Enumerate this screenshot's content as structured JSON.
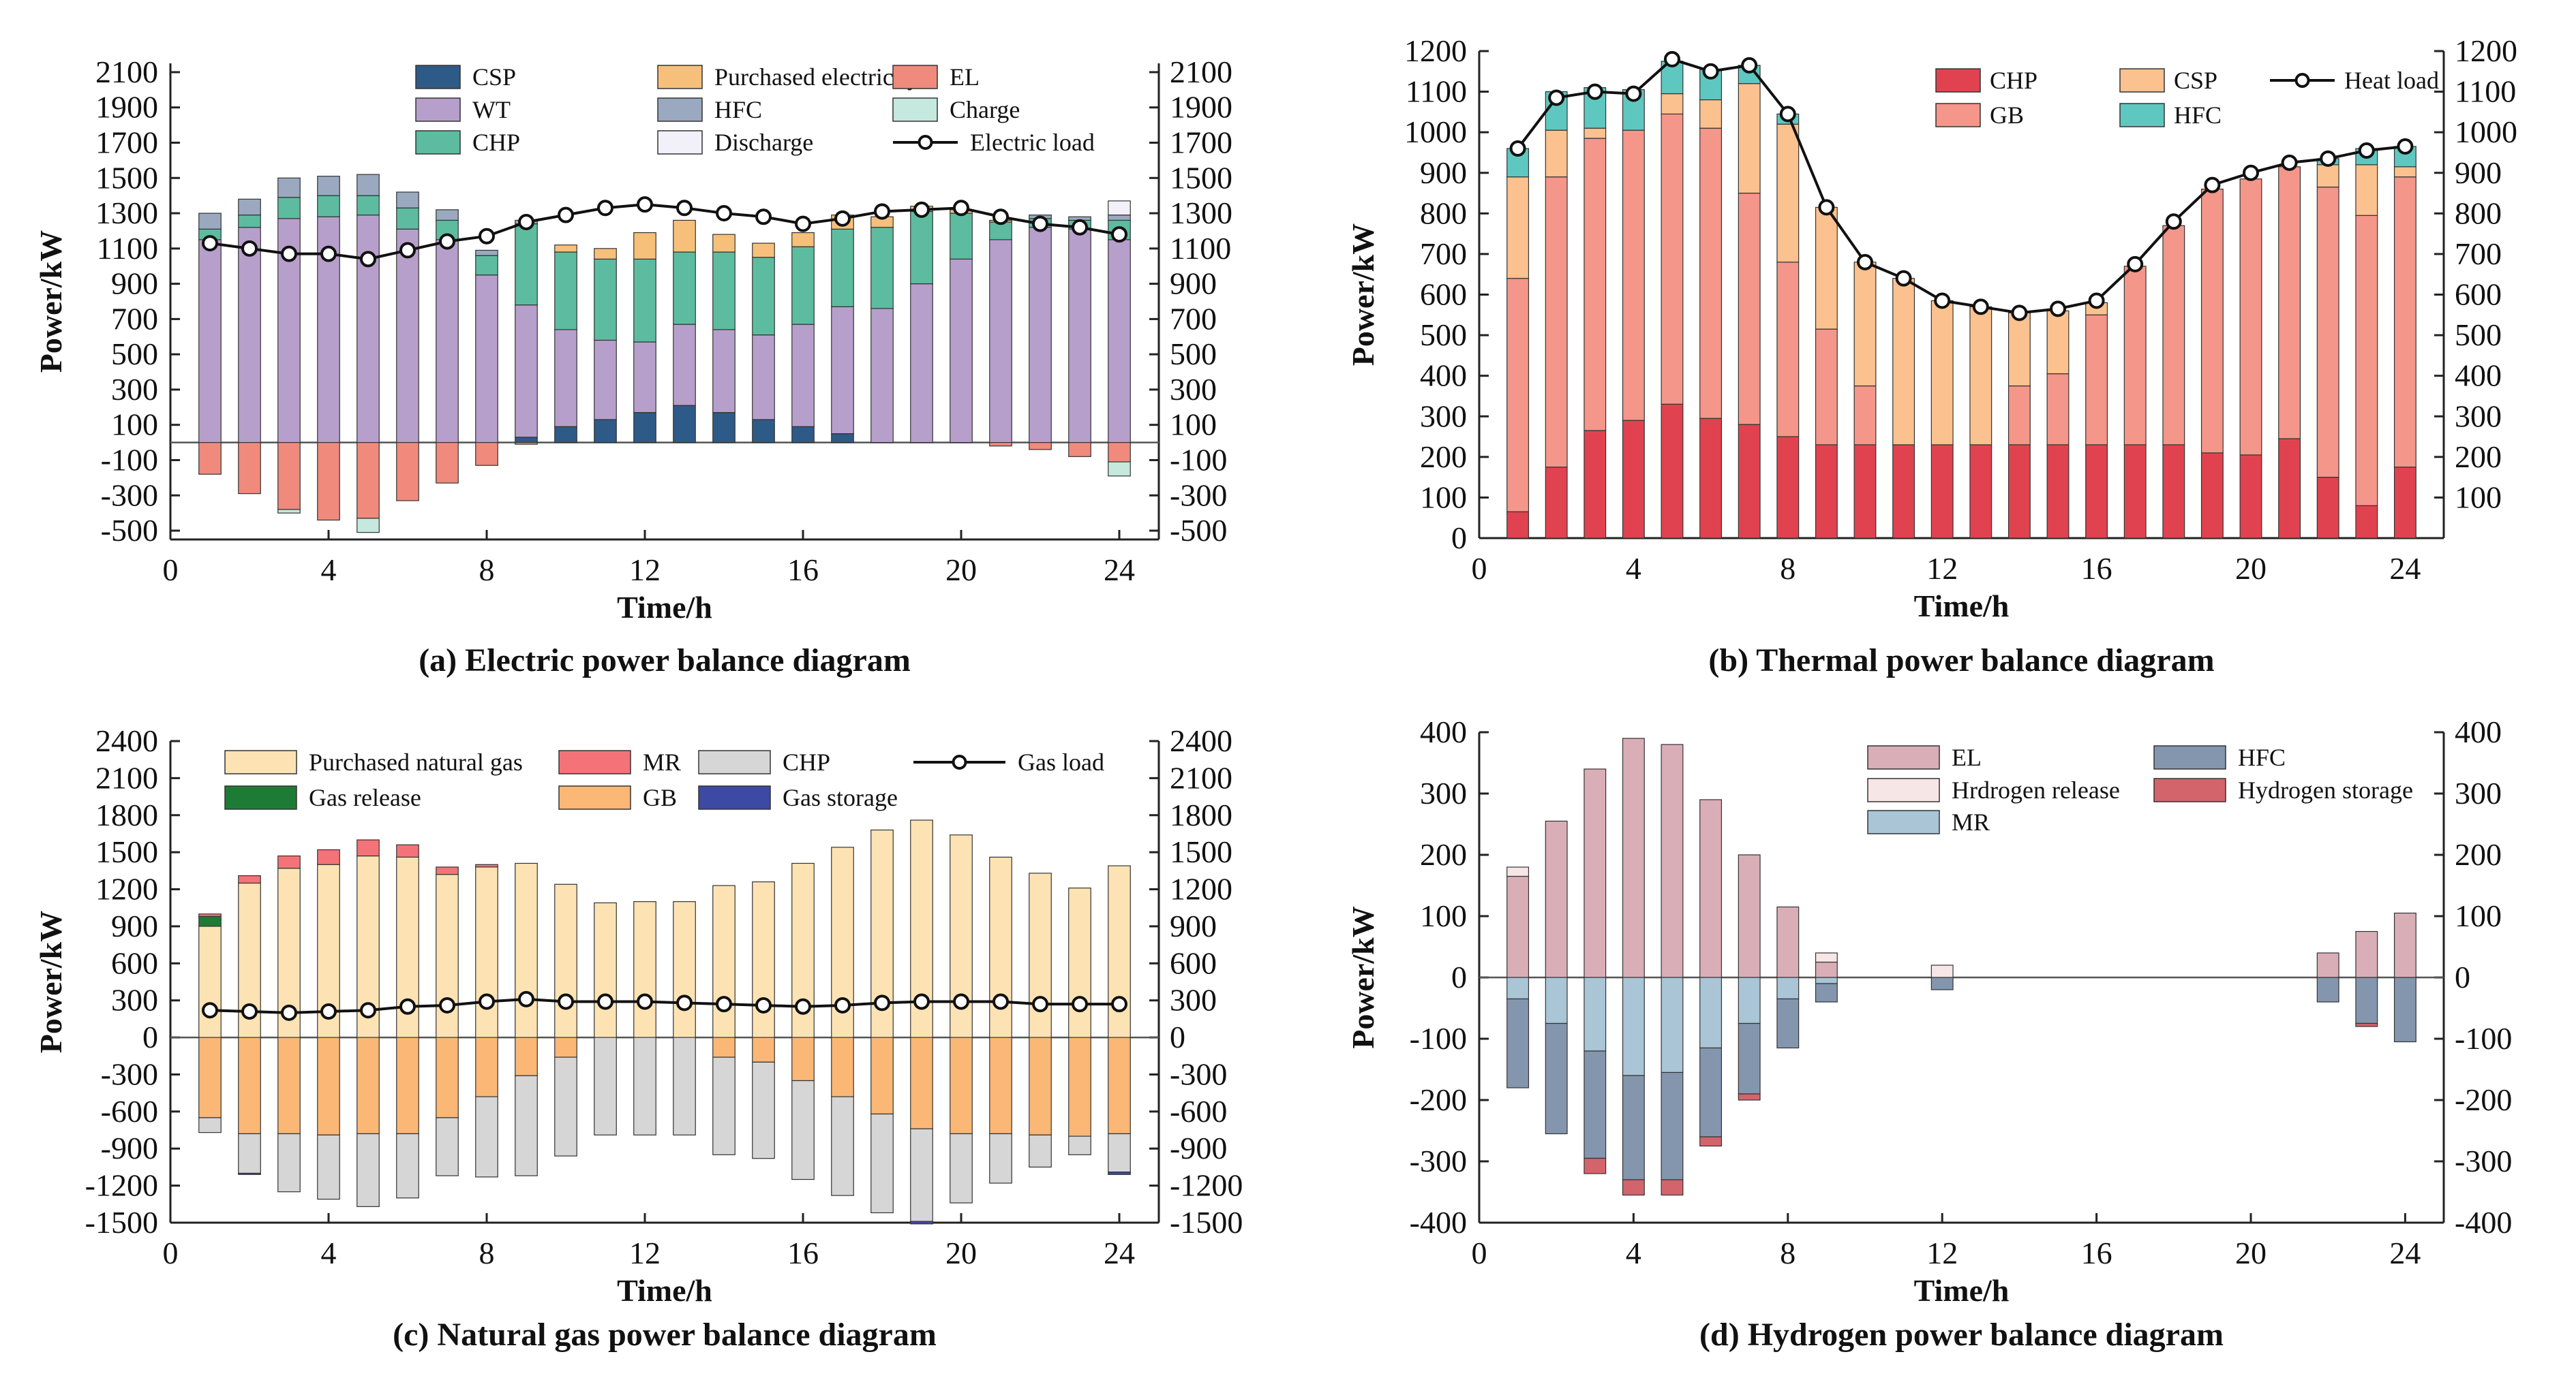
{
  "chart_data": [
    {
      "id": "a",
      "type": "bar",
      "caption": "(a) Electric power balance diagram",
      "xlabel": "Time/h",
      "ylabel": "Power/kW",
      "xticks": [
        0,
        4,
        8,
        12,
        16,
        20,
        24
      ],
      "ylim": [
        -550,
        2150
      ],
      "yticks": [
        -500,
        -300,
        -100,
        100,
        300,
        500,
        700,
        900,
        1100,
        1300,
        1500,
        1700,
        1900,
        2100
      ],
      "zero_line": true,
      "x": [
        1,
        2,
        3,
        4,
        5,
        6,
        7,
        8,
        9,
        10,
        11,
        12,
        13,
        14,
        15,
        16,
        17,
        18,
        19,
        20,
        21,
        22,
        23,
        24
      ],
      "series": [
        {
          "name": "CSP",
          "color": "#2e5a87",
          "values": [
            0,
            0,
            0,
            0,
            0,
            0,
            0,
            0,
            30,
            90,
            130,
            170,
            210,
            170,
            130,
            90,
            50,
            0,
            0,
            0,
            0,
            0,
            0,
            0
          ]
        },
        {
          "name": "WT",
          "color": "#b79fcb",
          "values": [
            1150,
            1220,
            1270,
            1280,
            1290,
            1210,
            1150,
            950,
            750,
            550,
            450,
            400,
            460,
            470,
            480,
            580,
            720,
            760,
            900,
            1040,
            1150,
            1220,
            1210,
            1150
          ]
        },
        {
          "name": "CHP",
          "color": "#5dbca0",
          "values": [
            60,
            70,
            120,
            120,
            110,
            120,
            110,
            110,
            460,
            440,
            460,
            470,
            410,
            440,
            440,
            440,
            440,
            460,
            410,
            260,
            100,
            50,
            50,
            110
          ]
        },
        {
          "name": "HFC",
          "color": "#9aa9bf",
          "values": [
            90,
            90,
            110,
            110,
            120,
            90,
            60,
            30,
            20,
            0,
            0,
            0,
            0,
            0,
            0,
            0,
            0,
            0,
            0,
            0,
            0,
            20,
            20,
            30
          ]
        },
        {
          "name": "Purchased electricity",
          "color": "#f6c07a",
          "values": [
            0,
            0,
            0,
            0,
            0,
            0,
            0,
            0,
            0,
            40,
            60,
            150,
            180,
            100,
            80,
            80,
            80,
            60,
            30,
            20,
            10,
            0,
            0,
            0
          ]
        },
        {
          "name": "Discharge",
          "color": "#f2f0f8",
          "values": [
            0,
            0,
            0,
            0,
            0,
            0,
            0,
            0,
            0,
            0,
            0,
            0,
            0,
            0,
            0,
            0,
            0,
            0,
            0,
            0,
            0,
            0,
            0,
            80
          ]
        },
        {
          "name": "EL",
          "color": "#f08a7c",
          "values": [
            -180,
            -290,
            -380,
            -440,
            -430,
            -330,
            -230,
            -130,
            -10,
            0,
            0,
            0,
            0,
            0,
            0,
            0,
            0,
            0,
            0,
            0,
            -20,
            -40,
            -80,
            -110
          ]
        },
        {
          "name": "Charge",
          "color": "#c6e9df",
          "values": [
            0,
            0,
            -20,
            0,
            -80,
            0,
            0,
            0,
            0,
            0,
            0,
            0,
            0,
            0,
            0,
            0,
            0,
            0,
            0,
            0,
            0,
            0,
            0,
            -80
          ]
        }
      ],
      "line": {
        "name": "Electric load",
        "values": [
          1130,
          1100,
          1070,
          1070,
          1040,
          1090,
          1140,
          1170,
          1250,
          1290,
          1330,
          1350,
          1330,
          1300,
          1280,
          1240,
          1270,
          1310,
          1320,
          1330,
          1280,
          1240,
          1220,
          1180
        ]
      },
      "legend": [
        {
          "label": "CSP",
          "color": "#2e5a87",
          "kind": "box"
        },
        {
          "label": "Purchased electricity",
          "color": "#f6c07a",
          "kind": "box"
        },
        {
          "label": "EL",
          "color": "#f08a7c",
          "kind": "box"
        },
        {
          "label": "WT",
          "color": "#b79fcb",
          "kind": "box"
        },
        {
          "label": "HFC",
          "color": "#9aa9bf",
          "kind": "box"
        },
        {
          "label": "Charge",
          "color": "#c6e9df",
          "kind": "box"
        },
        {
          "label": "CHP",
          "color": "#5dbca0",
          "kind": "box"
        },
        {
          "label": "Discharge",
          "color": "#f2f0f8",
          "kind": "box"
        },
        {
          "label": "Electric load",
          "color": "#111111",
          "kind": "line"
        }
      ]
    },
    {
      "id": "b",
      "type": "bar",
      "caption": "(b) Thermal power balance diagram",
      "xlabel": "Time/h",
      "ylabel": "Power/kW",
      "xticks": [
        0,
        4,
        8,
        12,
        16,
        20,
        24
      ],
      "ylim": [
        0,
        1200
      ],
      "yticks": [
        0,
        100,
        200,
        300,
        400,
        500,
        600,
        700,
        800,
        900,
        1000,
        1100,
        1200
      ],
      "yticks_right": [
        100,
        200,
        300,
        400,
        500,
        600,
        700,
        800,
        900,
        1000,
        1100,
        1200
      ],
      "zero_line": false,
      "x": [
        1,
        2,
        3,
        4,
        5,
        6,
        7,
        8,
        9,
        10,
        11,
        12,
        13,
        14,
        15,
        16,
        17,
        18,
        19,
        20,
        21,
        22,
        23,
        24
      ],
      "series": [
        {
          "name": "CHP",
          "color": "#e0434f",
          "values": [
            65,
            175,
            265,
            290,
            330,
            295,
            280,
            250,
            230,
            230,
            230,
            230,
            230,
            230,
            230,
            230,
            230,
            230,
            210,
            205,
            245,
            150,
            80,
            175
          ]
        },
        {
          "name": "GB",
          "color": "#f4968a",
          "values": [
            575,
            715,
            720,
            715,
            715,
            715,
            570,
            430,
            285,
            145,
            0,
            0,
            0,
            145,
            175,
            320,
            440,
            540,
            650,
            680,
            670,
            715,
            715,
            715
          ]
        },
        {
          "name": "CSP",
          "color": "#fbc18f",
          "values": [
            250,
            115,
            25,
            0,
            50,
            70,
            270,
            340,
            300,
            305,
            410,
            355,
            340,
            180,
            155,
            30,
            0,
            0,
            0,
            0,
            0,
            55,
            125,
            25
          ]
        },
        {
          "name": "HFC",
          "color": "#5ec8c0",
          "values": [
            70,
            95,
            100,
            100,
            80,
            75,
            45,
            25,
            0,
            0,
            0,
            0,
            0,
            0,
            0,
            0,
            0,
            0,
            0,
            0,
            0,
            15,
            40,
            50
          ]
        }
      ],
      "line": {
        "name": "Heat load",
        "values": [
          960,
          1085,
          1100,
          1095,
          1180,
          1150,
          1165,
          1045,
          815,
          680,
          640,
          585,
          570,
          555,
          565,
          585,
          675,
          780,
          870,
          900,
          925,
          935,
          955,
          965
        ]
      },
      "legend": [
        {
          "label": "CHP",
          "color": "#e0434f",
          "kind": "box"
        },
        {
          "label": "CSP",
          "color": "#fbc18f",
          "kind": "box"
        },
        {
          "label": "Heat load",
          "color": "#111111",
          "kind": "line"
        },
        {
          "label": "GB",
          "color": "#f4968a",
          "kind": "box"
        },
        {
          "label": "HFC",
          "color": "#5ec8c0",
          "kind": "box"
        }
      ]
    },
    {
      "id": "c",
      "type": "bar",
      "caption": "(c) Natural gas power balance diagram",
      "xlabel": "Time/h",
      "ylabel": "Power/kW",
      "xticks": [
        0,
        4,
        8,
        12,
        16,
        20,
        24
      ],
      "ylim": [
        -1500,
        2400
      ],
      "yticks": [
        -1500,
        -1200,
        -900,
        -600,
        -300,
        0,
        300,
        600,
        900,
        1200,
        1500,
        1800,
        2100,
        2400
      ],
      "zero_line": true,
      "x": [
        1,
        2,
        3,
        4,
        5,
        6,
        7,
        8,
        9,
        10,
        11,
        12,
        13,
        14,
        15,
        16,
        17,
        18,
        19,
        20,
        21,
        22,
        23,
        24
      ],
      "series": [
        {
          "name": "Purchased natural gas",
          "color": "#fde3b3",
          "values": [
            900,
            1250,
            1370,
            1400,
            1470,
            1460,
            1320,
            1380,
            1410,
            1240,
            1090,
            1100,
            1100,
            1230,
            1260,
            1410,
            1540,
            1680,
            1760,
            1640,
            1460,
            1330,
            1210,
            1390
          ]
        },
        {
          "name": "Gas release",
          "color": "#1e7b35",
          "values": [
            80,
            0,
            0,
            0,
            0,
            0,
            0,
            0,
            0,
            0,
            0,
            0,
            0,
            0,
            0,
            0,
            0,
            0,
            0,
            0,
            0,
            0,
            0,
            0
          ]
        },
        {
          "name": "MR",
          "color": "#f47378",
          "values": [
            20,
            60,
            100,
            120,
            130,
            100,
            60,
            20,
            0,
            0,
            0,
            0,
            0,
            0,
            0,
            0,
            0,
            0,
            0,
            0,
            0,
            0,
            0,
            0
          ]
        },
        {
          "name": "GB",
          "color": "#fbb775",
          "values": [
            -650,
            -780,
            -780,
            -790,
            -780,
            -780,
            -650,
            -480,
            -310,
            -160,
            0,
            0,
            0,
            -160,
            -200,
            -350,
            -480,
            -620,
            -740,
            -780,
            -780,
            -790,
            -800,
            -780
          ]
        },
        {
          "name": "CHP",
          "color": "#d6d6d6",
          "values": [
            -120,
            -320,
            -470,
            -520,
            -590,
            -520,
            -470,
            -650,
            -810,
            -800,
            -790,
            -790,
            -790,
            -790,
            -780,
            -800,
            -800,
            -800,
            -750,
            -560,
            -400,
            -260,
            -150,
            -310
          ]
        },
        {
          "name": "Gas storage",
          "color": "#3d4aa3",
          "values": [
            0,
            -10,
            0,
            0,
            0,
            0,
            0,
            0,
            0,
            0,
            0,
            0,
            0,
            0,
            0,
            0,
            0,
            0,
            -20,
            0,
            0,
            0,
            0,
            -20
          ]
        }
      ],
      "line": {
        "name": "Gas load",
        "values": [
          220,
          210,
          200,
          210,
          220,
          250,
          260,
          290,
          310,
          290,
          290,
          290,
          280,
          270,
          260,
          250,
          260,
          280,
          290,
          290,
          290,
          270,
          270,
          270
        ]
      },
      "legend": [
        {
          "label": "Purchased natural gas",
          "color": "#fde3b3",
          "kind": "box"
        },
        {
          "label": "MR",
          "color": "#f47378",
          "kind": "box"
        },
        {
          "label": "CHP",
          "color": "#d6d6d6",
          "kind": "box"
        },
        {
          "label": "Gas load",
          "color": "#111111",
          "kind": "line"
        },
        {
          "label": "Gas release",
          "color": "#1e7b35",
          "kind": "box"
        },
        {
          "label": "GB",
          "color": "#fbb775",
          "kind": "box"
        },
        {
          "label": "Gas storage",
          "color": "#3d4aa3",
          "kind": "box"
        }
      ]
    },
    {
      "id": "d",
      "type": "bar",
      "caption": "(d) Hydrogen power balance diagram",
      "xlabel": "Time/h",
      "ylabel": "Power/kW",
      "xticks": [
        0,
        4,
        8,
        12,
        16,
        20,
        24
      ],
      "ylim": [
        -400,
        400
      ],
      "yticks": [
        -400,
        -300,
        -200,
        -100,
        0,
        100,
        200,
        300,
        400
      ],
      "zero_line": true,
      "x": [
        1,
        2,
        3,
        4,
        5,
        6,
        7,
        8,
        9,
        10,
        11,
        12,
        13,
        14,
        15,
        16,
        17,
        18,
        19,
        20,
        21,
        22,
        23,
        24
      ],
      "series": [
        {
          "name": "EL",
          "color": "#d9aeb7",
          "values": [
            165,
            255,
            340,
            390,
            380,
            290,
            200,
            115,
            25,
            0,
            0,
            0,
            0,
            0,
            0,
            0,
            0,
            0,
            0,
            0,
            0,
            40,
            75,
            105
          ]
        },
        {
          "name": "Hrdrogen release",
          "color": "#f7e6e6",
          "values": [
            15,
            0,
            0,
            0,
            0,
            0,
            0,
            0,
            15,
            0,
            0,
            20,
            0,
            0,
            0,
            0,
            0,
            0,
            0,
            0,
            0,
            0,
            0,
            0
          ]
        },
        {
          "name": "MR",
          "color": "#a9c5d6",
          "values": [
            -35,
            -75,
            -120,
            -160,
            -155,
            -115,
            -75,
            -35,
            -10,
            0,
            0,
            0,
            0,
            0,
            0,
            0,
            0,
            0,
            0,
            0,
            0,
            0,
            0,
            0
          ]
        },
        {
          "name": "HFC",
          "color": "#8496ad",
          "values": [
            -145,
            -180,
            -175,
            -170,
            -175,
            -145,
            -115,
            -80,
            -30,
            0,
            0,
            -20,
            0,
            0,
            0,
            0,
            0,
            0,
            0,
            0,
            0,
            -40,
            -75,
            -105
          ]
        },
        {
          "name": "Hydrogen storage",
          "color": "#d4646c",
          "values": [
            0,
            0,
            -25,
            -25,
            -25,
            -15,
            -10,
            0,
            0,
            0,
            0,
            0,
            0,
            0,
            0,
            0,
            0,
            0,
            0,
            0,
            0,
            0,
            -5,
            0
          ]
        }
      ],
      "line": null,
      "legend": [
        {
          "label": "EL",
          "color": "#d9aeb7",
          "kind": "box"
        },
        {
          "label": "HFC",
          "color": "#8496ad",
          "kind": "box"
        },
        {
          "label": "Hrdrogen release",
          "color": "#f7e6e6",
          "kind": "box"
        },
        {
          "label": "Hydrogen storage",
          "color": "#d4646c",
          "kind": "box"
        },
        {
          "label": "MR",
          "color": "#a9c5d6",
          "kind": "box"
        }
      ]
    }
  ]
}
